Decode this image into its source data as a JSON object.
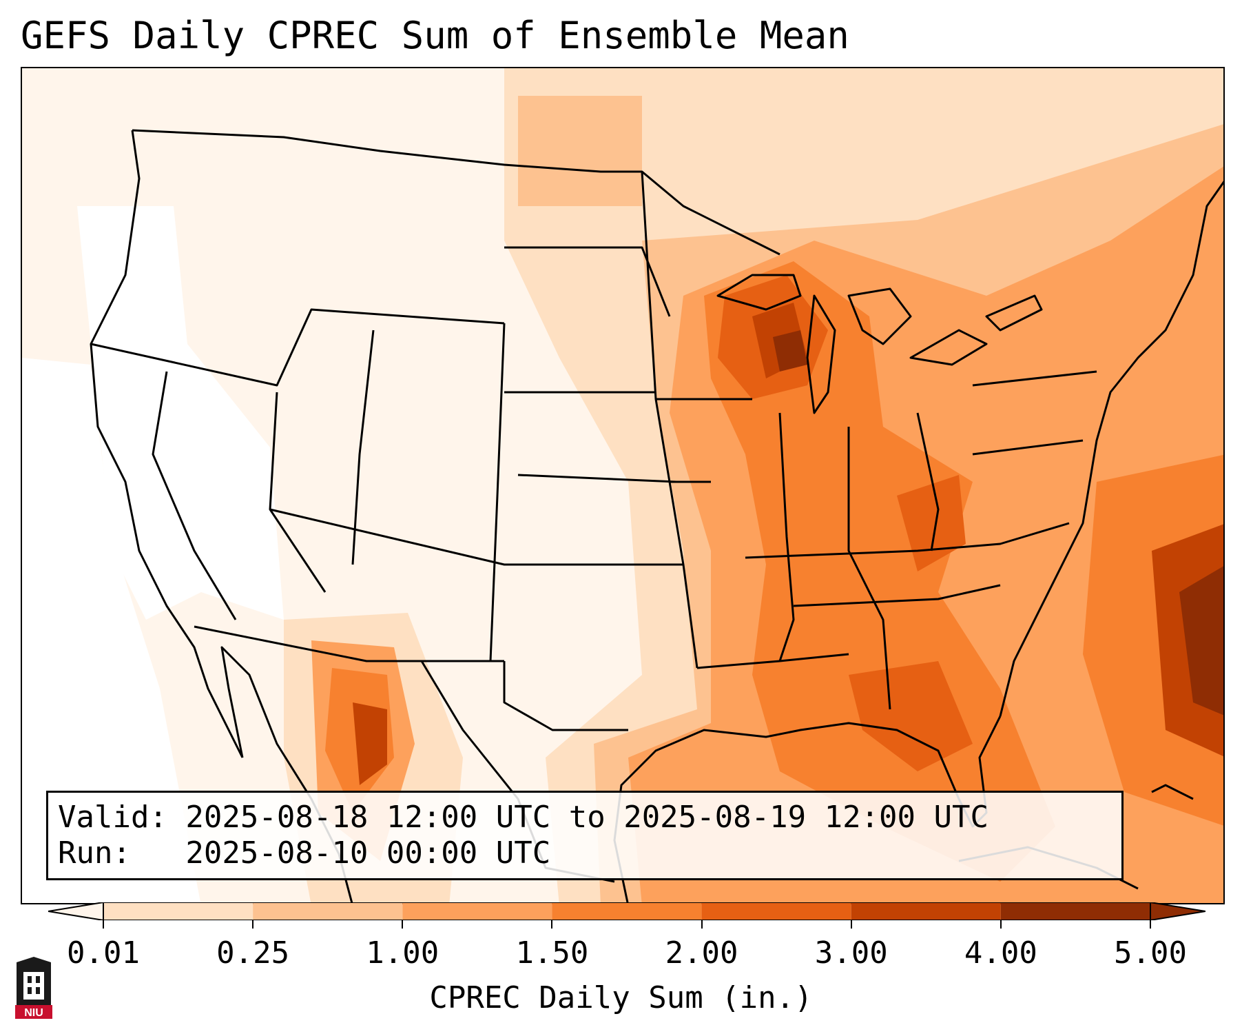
{
  "title": "GEFS Daily CPREC Sum of Ensemble Mean",
  "valid_line": "Valid: 2025-08-18 12:00 UTC to 2025-08-19 12:00 UTC",
  "run_line": "Run:   2025-08-10 00:00 UTC",
  "colorbar": {
    "label": "CPREC Daily Sum (in.)",
    "ticks": [
      "0.01",
      "0.25",
      "1.00",
      "1.50",
      "2.00",
      "3.00",
      "4.00",
      "5.00"
    ],
    "colors": [
      "#fff5eb",
      "#fee0c2",
      "#fdc290",
      "#fda15c",
      "#f7812f",
      "#e66013",
      "#c24203",
      "#8f2d04"
    ]
  },
  "map": {
    "variable": "Convective precipitation daily sum",
    "region": "Contiguous United States",
    "coastline_color": "#000000",
    "high_precip_areas": [
      "Wisconsin / Upper Michigan",
      "Tennessee / Georgia",
      "Florida Panhandle",
      "Western Atlantic",
      "Sierra Madre, Mexico"
    ]
  },
  "logo": {
    "text": "NIU",
    "color": "#c8102e"
  }
}
